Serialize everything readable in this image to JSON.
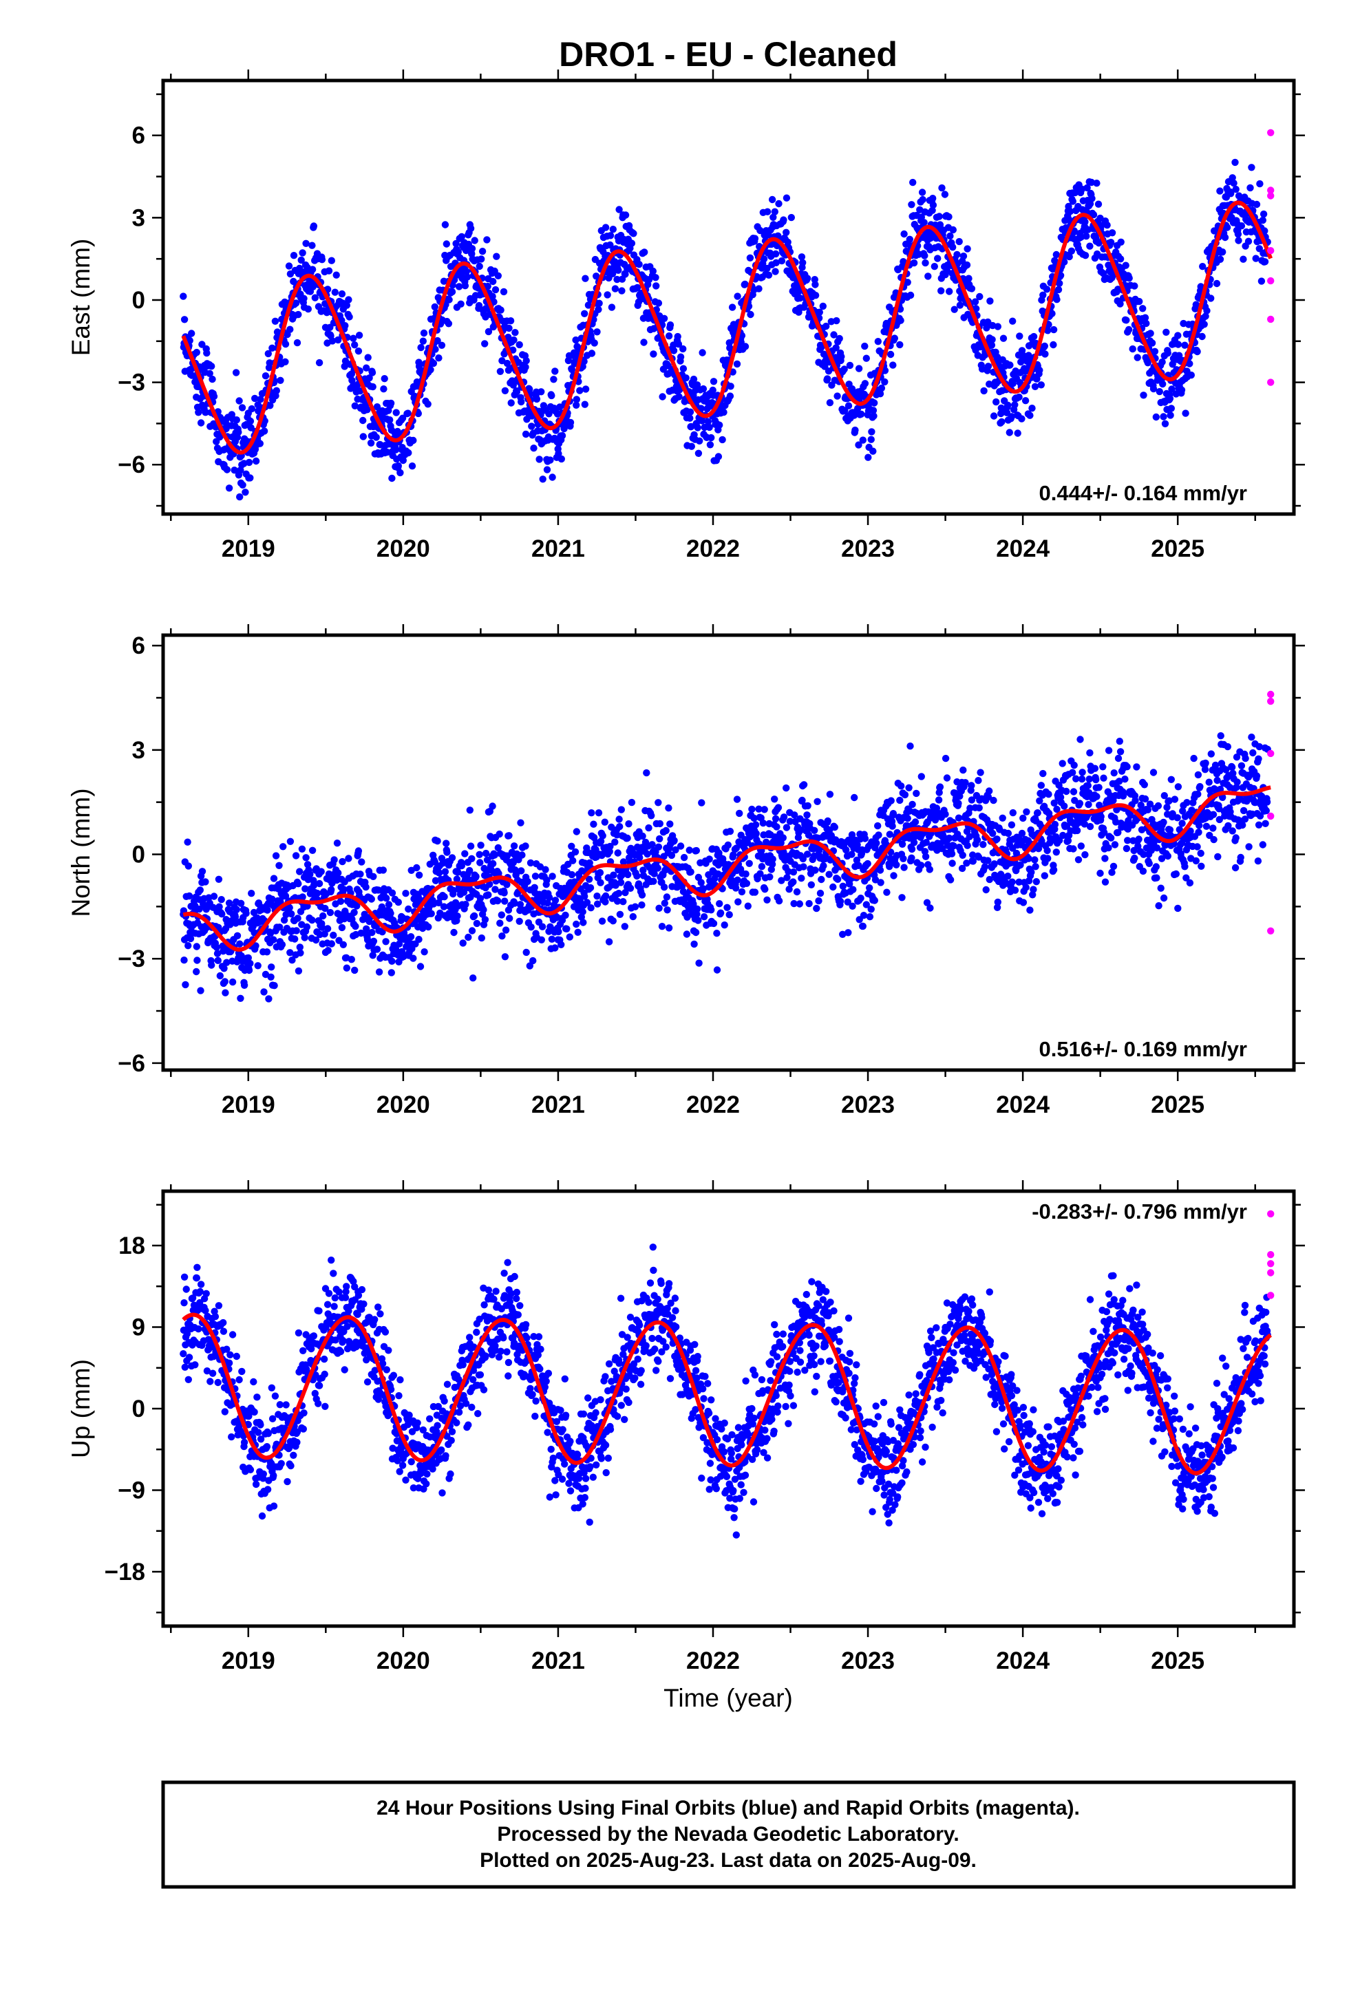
{
  "title": "DRO1  - EU - Cleaned",
  "chart_data": [
    {
      "type": "scatter",
      "ylabel": "East (mm)",
      "xlabel": "",
      "xlim": [
        2018.45,
        2025.75
      ],
      "ylim": [
        -7.8,
        8.0
      ],
      "yticks": [
        -6,
        -3,
        0,
        3,
        6
      ],
      "xticks": [
        2019,
        2020,
        2021,
        2022,
        2023,
        2024,
        2025
      ],
      "rate_text": "0.444+/- 0.164 mm/yr",
      "rate_position": "bottom-right",
      "model": {
        "t_start": 2018.58,
        "t_end": 2025.6,
        "offset": -1.1,
        "trend": 0.444,
        "annual_amp": 3.05,
        "annual_peak": 2019.42,
        "semiannual_amp": 0.35,
        "semiannual_peak": 2019.3
      },
      "scatter": {
        "noise": 0.95
      },
      "series": [
        {
          "name": "",
          "kind": "final_orbits",
          "color": "#0000ff",
          "x_range": [
            2018.58,
            2025.58
          ]
        },
        {
          "name": "",
          "kind": "rapid_orbits",
          "color": "#ff00ff",
          "points": [
            [
              2025.6,
              6.1
            ],
            [
              2025.6,
              4.0
            ],
            [
              2025.6,
              3.8
            ],
            [
              2025.6,
              1.8
            ],
            [
              2025.6,
              0.7
            ],
            [
              2025.6,
              -0.7
            ],
            [
              2025.6,
              -3.0
            ]
          ]
        },
        {
          "name": "",
          "kind": "model_fit",
          "color": "#ff0000"
        }
      ]
    },
    {
      "type": "scatter",
      "ylabel": "North (mm)",
      "xlabel": "",
      "xlim": [
        2018.45,
        2025.75
      ],
      "ylim": [
        -6.2,
        6.3
      ],
      "yticks": [
        -6,
        -3,
        0,
        3,
        6
      ],
      "xticks": [
        2019,
        2020,
        2021,
        2022,
        2023,
        2024,
        2025
      ],
      "rate_text": "0.516+/- 0.169 mm/yr",
      "rate_position": "bottom-right",
      "model": {
        "t_start": 2018.58,
        "t_end": 2025.6,
        "offset": -0.35,
        "trend": 0.52,
        "annual_amp": 0.55,
        "annual_peak": 2019.45,
        "semiannual_amp": 0.25,
        "semiannual_peak": 2019.2
      },
      "scatter": {
        "noise": 0.95
      },
      "series": [
        {
          "name": "",
          "kind": "final_orbits",
          "color": "#0000ff",
          "x_range": [
            2018.58,
            2025.58
          ]
        },
        {
          "name": "",
          "kind": "rapid_orbits",
          "color": "#ff00ff",
          "points": [
            [
              2025.6,
              4.6
            ],
            [
              2025.6,
              4.4
            ],
            [
              2025.6,
              2.9
            ],
            [
              2025.6,
              1.1
            ],
            [
              2025.6,
              -2.2
            ]
          ]
        },
        {
          "name": "",
          "kind": "model_fit",
          "color": "#ff0000"
        }
      ]
    },
    {
      "type": "scatter",
      "ylabel": "Up (mm)",
      "xlabel": "Time (year)",
      "xlim": [
        2018.45,
        2025.75
      ],
      "ylim": [
        -24.0,
        24.0
      ],
      "yticks": [
        -18,
        -9,
        0,
        9,
        18
      ],
      "xticks": [
        2019,
        2020,
        2021,
        2022,
        2023,
        2024,
        2025
      ],
      "rate_text": "-0.283+/- 0.796 mm/yr",
      "rate_position": "top-right",
      "model": {
        "t_start": 2018.58,
        "t_end": 2025.6,
        "offset": 1.8,
        "trend": -0.283,
        "annual_amp": 7.8,
        "annual_peak": 2019.63,
        "semiannual_amp": 0.4,
        "semiannual_peak": 2019.3
      },
      "scatter": {
        "noise": 3.4
      },
      "series": [
        {
          "name": "",
          "kind": "final_orbits",
          "color": "#0000ff",
          "x_range": [
            2018.58,
            2025.58
          ]
        },
        {
          "name": "",
          "kind": "rapid_orbits",
          "color": "#ff00ff",
          "points": [
            [
              2025.6,
              21.5
            ],
            [
              2025.6,
              17.0
            ],
            [
              2025.6,
              16.0
            ],
            [
              2025.6,
              15.0
            ],
            [
              2025.6,
              12.5
            ]
          ]
        },
        {
          "name": "",
          "kind": "model_fit",
          "color": "#ff0000"
        }
      ]
    }
  ],
  "footer": {
    "line1": "24 Hour Positions Using Final Orbits (blue) and Rapid Orbits (magenta).",
    "line2": "Processed by the Nevada Geodetic Laboratory.",
    "line3": "Plotted on 2025-Aug-23. Last data on 2025-Aug-09."
  }
}
